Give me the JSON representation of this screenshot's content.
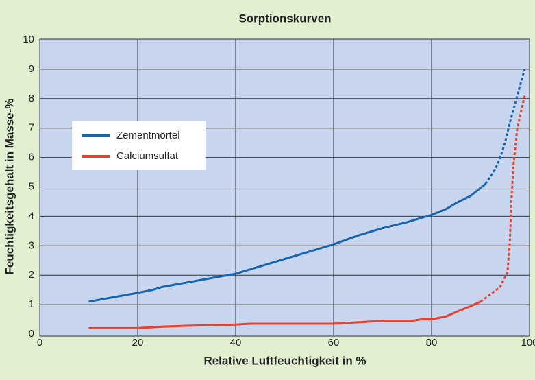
{
  "chart_data": {
    "type": "line",
    "title": "Sorptionskurven",
    "x_label": "Relative Luftfeuchtigkeit in %",
    "y_label": "Feuchtigkeitsgehalt in Masse-%",
    "xlim": [
      0,
      100
    ],
    "xticks": [
      0,
      20,
      40,
      60,
      80,
      100
    ],
    "ylim": [
      0,
      10
    ],
    "yticks": [
      0,
      1,
      2,
      3,
      4,
      5,
      6,
      7,
      8,
      9,
      10
    ],
    "grid": true,
    "legend": "upper left",
    "series": [
      {
        "name": "Zementmörtel",
        "color": "#1565b0",
        "x": [
          10,
          15,
          20,
          23,
          25,
          30,
          35,
          40,
          45,
          50,
          55,
          60,
          65,
          70,
          75,
          80,
          83,
          85,
          88,
          91,
          93,
          94,
          95,
          96,
          97,
          98,
          99
        ],
        "values": [
          1.1,
          1.25,
          1.4,
          1.5,
          1.6,
          1.75,
          1.9,
          2.05,
          2.3,
          2.55,
          2.8,
          3.05,
          3.35,
          3.6,
          3.8,
          4.05,
          4.25,
          4.45,
          4.7,
          5.1,
          null,
          null,
          null,
          null,
          null,
          null,
          null
        ],
        "dashed_values": [
          null,
          null,
          null,
          null,
          null,
          null,
          null,
          null,
          null,
          null,
          null,
          null,
          null,
          null,
          null,
          null,
          null,
          null,
          null,
          5.1,
          5.6,
          6.0,
          6.5,
          7.2,
          7.8,
          8.4,
          9.0
        ]
      },
      {
        "name": "Calciumsulfat",
        "color": "#e8412c",
        "x": [
          10,
          15,
          20,
          25,
          30,
          35,
          40,
          43,
          50,
          60,
          65,
          70,
          76,
          78,
          80,
          83,
          85,
          88,
          90,
          92,
          94,
          95.5,
          96,
          96.3,
          96.7,
          97.5,
          99
        ],
        "values": [
          0.2,
          0.2,
          0.2,
          0.25,
          0.28,
          0.3,
          0.32,
          0.35,
          0.35,
          0.35,
          0.4,
          0.45,
          0.45,
          0.5,
          0.5,
          0.6,
          0.75,
          0.95,
          1.1,
          null,
          null,
          null,
          null,
          null,
          null,
          null,
          null
        ],
        "dashed_values": [
          null,
          null,
          null,
          null,
          null,
          null,
          null,
          null,
          null,
          null,
          null,
          null,
          null,
          null,
          null,
          null,
          null,
          null,
          1.1,
          1.35,
          1.6,
          2.1,
          3.2,
          4.5,
          5.7,
          7.0,
          8.1
        ]
      }
    ]
  }
}
